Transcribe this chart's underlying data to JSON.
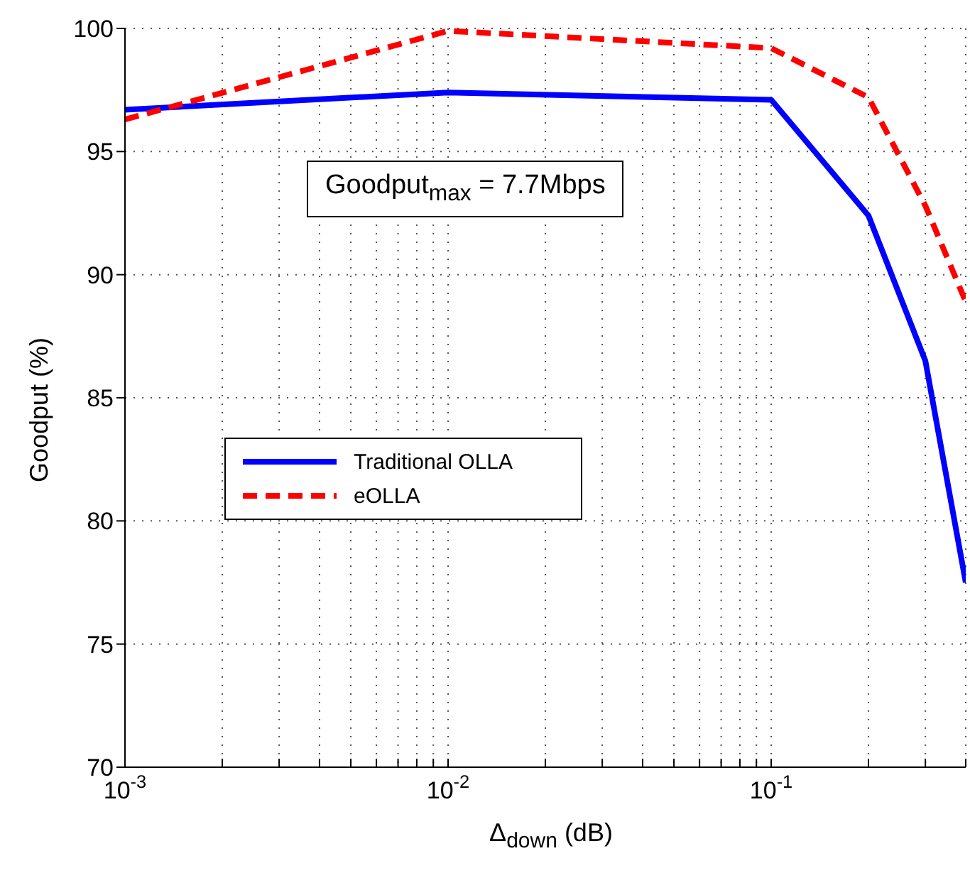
{
  "chart_data": {
    "type": "line",
    "xlabel": "Δ$_{down}$ (dB)",
    "ylabel": "Goodput (%)",
    "log": "x",
    "grid": true,
    "legend": "center",
    "annotations": [
      "Goodput$_{max}$ = 7.7Mbps"
    ],
    "x": [
      0.001,
      0.01,
      0.1,
      0.2,
      0.3,
      0.4
    ],
    "xlim": [
      0.001,
      0.4
    ],
    "xticks": [
      {
        "value": 0.001,
        "label": "10$^{-3}$"
      },
      {
        "value": 0.002,
        "label": null
      },
      {
        "value": 0.003,
        "label": null
      },
      {
        "value": 0.004,
        "label": null
      },
      {
        "value": 0.005,
        "label": null
      },
      {
        "value": 0.006,
        "label": null
      },
      {
        "value": 0.007,
        "label": null
      },
      {
        "value": 0.008,
        "label": null
      },
      {
        "value": 0.009,
        "label": null
      },
      {
        "value": 0.01,
        "label": "10$^{-2}$"
      },
      {
        "value": 0.02,
        "label": null
      },
      {
        "value": 0.03,
        "label": null
      },
      {
        "value": 0.04,
        "label": null
      },
      {
        "value": 0.05,
        "label": null
      },
      {
        "value": 0.06,
        "label": null
      },
      {
        "value": 0.07,
        "label": null
      },
      {
        "value": 0.08,
        "label": null
      },
      {
        "value": 0.09,
        "label": null
      },
      {
        "value": 0.1,
        "label": "10$^{-1}$"
      },
      {
        "value": 0.2,
        "label": null
      },
      {
        "value": 0.3,
        "label": null
      },
      {
        "value": 0.4,
        "label": null
      }
    ],
    "ylim": [
      70,
      100
    ],
    "yticks": [
      70,
      75,
      80,
      85,
      90,
      95,
      100
    ],
    "series": [
      {
        "name": "Traditional OLLA",
        "color": "#0000ff",
        "line_style": "solid",
        "values": [
          96.7,
          97.4,
          97.1,
          92.4,
          86.5,
          77.5
        ]
      },
      {
        "name": "eOLLA",
        "color": "#ff0000",
        "line_style": "dashed",
        "values": [
          96.3,
          99.9,
          99.2,
          97.2,
          92.8,
          88.9
        ]
      }
    ]
  }
}
